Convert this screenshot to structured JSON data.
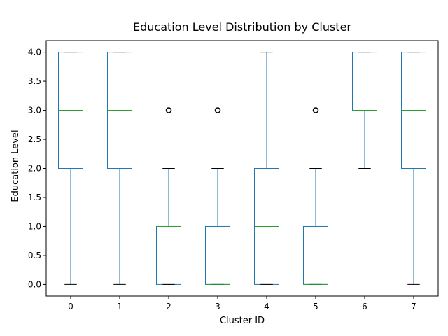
{
  "chart_data": {
    "type": "box",
    "title": "Education Level Distribution by Cluster",
    "xlabel": "Cluster ID",
    "ylabel": "Education Level",
    "ylim": [
      -0.2,
      4.2
    ],
    "yticks": [
      "0.0",
      "0.5",
      "1.0",
      "1.5",
      "2.0",
      "2.5",
      "3.0",
      "3.5",
      "4.0"
    ],
    "categories": [
      "0",
      "1",
      "2",
      "3",
      "4",
      "5",
      "6",
      "7"
    ],
    "boxes": [
      {
        "category": "0",
        "whisker_low": 0,
        "q1": 2,
        "median": 3,
        "q3": 4,
        "whisker_high": 4,
        "outliers": []
      },
      {
        "category": "1",
        "whisker_low": 0,
        "q1": 2,
        "median": 3,
        "q3": 4,
        "whisker_high": 4,
        "outliers": []
      },
      {
        "category": "2",
        "whisker_low": 0,
        "q1": 0,
        "median": 1,
        "q3": 1,
        "whisker_high": 2,
        "outliers": [
          3
        ]
      },
      {
        "category": "3",
        "whisker_low": 0,
        "q1": 0,
        "median": 0,
        "q3": 1,
        "whisker_high": 2,
        "outliers": [
          3
        ]
      },
      {
        "category": "4",
        "whisker_low": 0,
        "q1": 0,
        "median": 1,
        "q3": 2,
        "whisker_high": 4,
        "outliers": []
      },
      {
        "category": "5",
        "whisker_low": 0,
        "q1": 0,
        "median": 0,
        "q3": 1,
        "whisker_high": 2,
        "outliers": [
          3
        ]
      },
      {
        "category": "6",
        "whisker_low": 2,
        "q1": 3,
        "median": 3,
        "q3": 4,
        "whisker_high": 4,
        "outliers": []
      },
      {
        "category": "7",
        "whisker_low": 0,
        "q1": 2,
        "median": 3,
        "q3": 4,
        "whisker_high": 4,
        "outliers": []
      }
    ],
    "colors": {
      "box": "#1f77b4",
      "median": "#2ca02c",
      "whisker_cap": "#000000",
      "outlier": "#000000"
    },
    "grid": false,
    "legend": "none"
  }
}
